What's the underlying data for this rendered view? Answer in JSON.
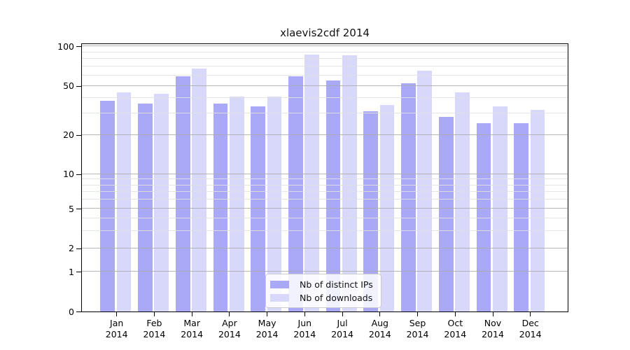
{
  "figure": {
    "title": "xlaevis2cdf 2014"
  },
  "chart_data": {
    "type": "bar",
    "title": "xlaevis2cdf 2014",
    "xlabel": "",
    "ylabel": "",
    "x_categories": [
      "Jan 2014",
      "Feb 2014",
      "Mar 2014",
      "Apr 2014",
      "May 2014",
      "Jun 2014",
      "Jul 2014",
      "Aug 2014",
      "Sep 2014",
      "Oct 2014",
      "Nov 2014",
      "Dec 2014"
    ],
    "x_tick_months": [
      "Jan",
      "Feb",
      "Mar",
      "Apr",
      "May",
      "Jun",
      "Jul",
      "Aug",
      "Sep",
      "Oct",
      "Nov",
      "Dec"
    ],
    "x_tick_year": "2014",
    "series": [
      {
        "name": "Nb of distinct IPs",
        "color": "#a9a9f8",
        "values": [
          38,
          36,
          59,
          36,
          34,
          59,
          55,
          31,
          52,
          28,
          25,
          25
        ]
      },
      {
        "name": "Nb of downloads",
        "color": "#d8d8fb",
        "values": [
          44,
          43,
          68,
          41,
          41,
          86,
          85,
          35,
          65,
          44,
          34,
          32
        ]
      }
    ],
    "y_axis": {
      "scale": "log-like with linear segment below 1",
      "range": [
        0,
        100
      ],
      "major_ticks": [
        0,
        1,
        2,
        5,
        10,
        20,
        50,
        100
      ],
      "minor_gridlines": [
        3,
        4,
        6,
        7,
        8,
        9,
        30,
        40,
        60,
        70,
        80,
        90
      ]
    },
    "legend": {
      "position": "lower center",
      "entries": [
        "Nb of distinct IPs",
        "Nb of downloads"
      ]
    },
    "colors": {
      "bar_distinct_ips": "#a9a9f8",
      "bar_downloads": "#d8d8fb",
      "major_grid": "#aaaaaa",
      "minor_grid": "#e1e1e1",
      "axis_frame": "#000000",
      "background": "#ffffff"
    },
    "grid": "on (horizontal major + minor, drawn over bars)"
  }
}
